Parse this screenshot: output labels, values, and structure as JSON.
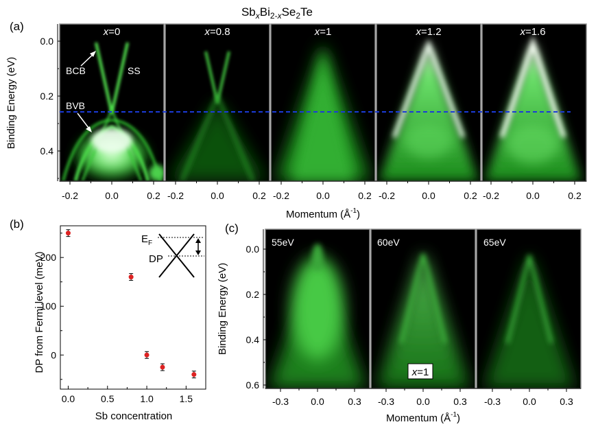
{
  "title": {
    "prefix": "Sb",
    "x1": "x",
    "mid": "Bi",
    "sub2": "2-",
    "x2": "x",
    "se": "Se",
    "sub3": "2",
    "te": "Te"
  },
  "colors": {
    "green": "#35e035",
    "bright": "#d8ffd0",
    "dashed_line": "#1b3bd8",
    "marker": "#dd2222",
    "black": "#000000"
  },
  "panel_a": {
    "label": "(a)",
    "ylabel": "Binding Energy (eV)",
    "yticks": [
      "0.0",
      "0.2",
      "0.4"
    ],
    "xticks": [
      "-0.2",
      "0.0",
      "0.2"
    ],
    "xlabel_main": "Momentum (Å",
    "xlabel_exp": "-1",
    "xlabel_close": ")",
    "subpanels": [
      {
        "xvar": "x",
        "value": "=0"
      },
      {
        "xvar": "x",
        "value": "=0.8"
      },
      {
        "xvar": "x",
        "value": "=1"
      },
      {
        "xvar": "x",
        "value": "=1.2"
      },
      {
        "xvar": "x",
        "value": "=1.6"
      }
    ],
    "annotations": {
      "bcb": "BCB",
      "ss": "SS",
      "bvb": "BVB"
    }
  },
  "panel_b": {
    "label": "(b)",
    "ylabel": "DP from Fermi level (meV)",
    "xlabel": "Sb concentration",
    "xticks": [
      "0.0",
      "0.5",
      "1.0",
      "1.5"
    ],
    "yticks": [
      "0",
      "100",
      "200"
    ],
    "inset": {
      "ef_main": "E",
      "ef_sub": "F",
      "dp": "DP"
    }
  },
  "chart_data": [
    {
      "type": "scatter",
      "title": "",
      "xlabel": "Sb concentration",
      "ylabel": "DP from Fermi level (meV)",
      "x": [
        0.0,
        0.8,
        1.0,
        1.2,
        1.6
      ],
      "y": [
        250,
        160,
        0,
        -25,
        -40
      ],
      "yerr": [
        7,
        7,
        7,
        7,
        7
      ],
      "xlim": [
        -0.1,
        1.75
      ],
      "ylim": [
        -70,
        265
      ],
      "xticks": [
        0.0,
        0.5,
        1.0,
        1.5
      ],
      "yticks": [
        0,
        100,
        200
      ]
    }
  ],
  "panel_c": {
    "label": "(c)",
    "ylabel": "Binding Energy (eV)",
    "yticks": [
      "0.0",
      "0.2",
      "0.4",
      "0.6"
    ],
    "xticks": [
      "-0.3",
      "0.0",
      "0.3"
    ],
    "xlabel_main": "Momentum (Å",
    "xlabel_exp": "-1",
    "xlabel_close": ")",
    "subpanels": [
      {
        "energy": "55eV"
      },
      {
        "energy": "60eV"
      },
      {
        "energy": "65eV"
      }
    ],
    "inset_label": {
      "xvar": "x",
      "value": "=1"
    }
  }
}
